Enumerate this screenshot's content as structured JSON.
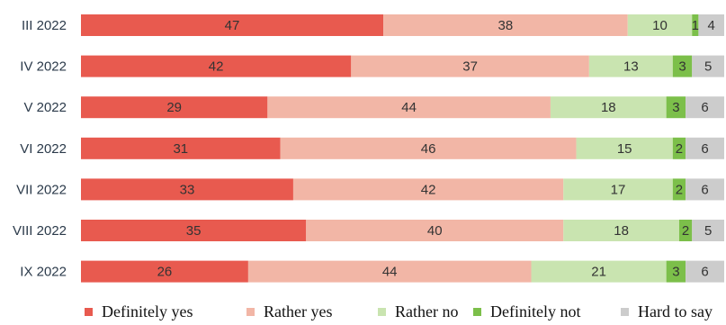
{
  "chart_data": {
    "type": "bar",
    "orientation": "horizontal",
    "stacked": true,
    "categories": [
      "III 2022",
      "IV 2022",
      "V 2022",
      "VI 2022",
      "VII 2022",
      "VIII 2022",
      "IX 2022"
    ],
    "series": [
      {
        "name": "Definitely yes",
        "color": "#e85a4f",
        "values": [
          47,
          42,
          29,
          31,
          33,
          35,
          26
        ]
      },
      {
        "name": "Rather yes",
        "color": "#f2b6a6",
        "values": [
          38,
          37,
          44,
          46,
          42,
          40,
          44
        ]
      },
      {
        "name": "Rather no",
        "color": "#c9e4b0",
        "values": [
          10,
          13,
          18,
          15,
          17,
          18,
          21
        ]
      },
      {
        "name": "Definitely not",
        "color": "#7cbf4a",
        "values": [
          1,
          3,
          3,
          2,
          2,
          2,
          3
        ]
      },
      {
        "name": "Hard to say",
        "color": "#cccccc",
        "values": [
          4,
          5,
          6,
          6,
          6,
          5,
          6
        ]
      }
    ],
    "xlim": [
      0,
      100
    ],
    "legend_position": "bottom",
    "grid": false
  }
}
